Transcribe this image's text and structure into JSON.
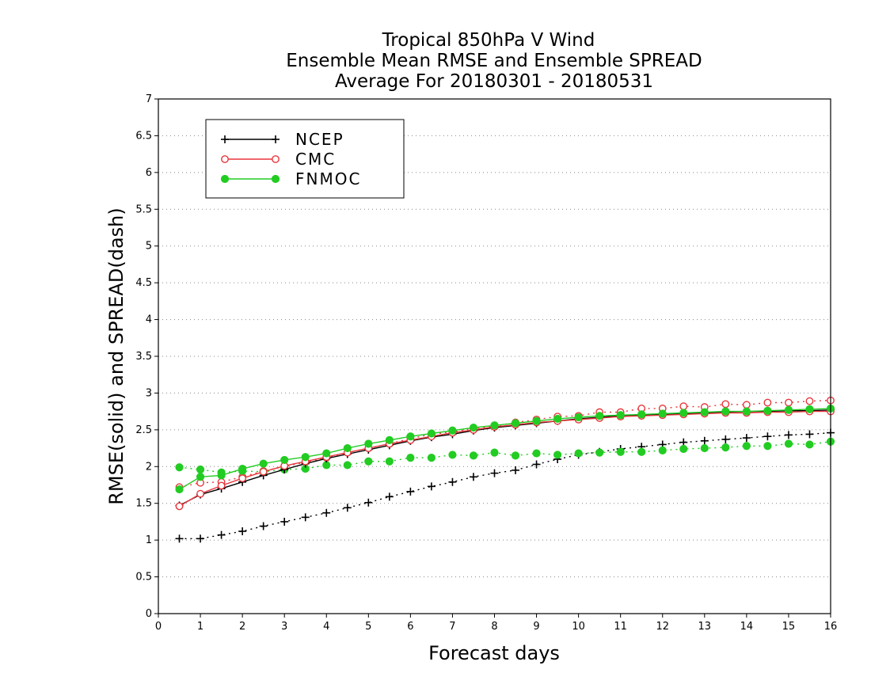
{
  "chart_data": {
    "type": "line",
    "title": "Tropical 850hPa V Wind",
    "subtitle": "Ensemble Mean RMSE and Ensemble SPREAD",
    "subtitle2": "Average For 20180301 - 20180531",
    "xlabel": "Forecast days",
    "ylabel": "RMSE(solid) and SPREAD(dash)",
    "xlim": [
      0,
      16
    ],
    "ylim": [
      0,
      7
    ],
    "xticks": [
      0,
      1,
      2,
      3,
      4,
      5,
      6,
      7,
      8,
      9,
      10,
      11,
      12,
      13,
      14,
      15,
      16
    ],
    "yticks": [
      0,
      0.5,
      1,
      1.5,
      2,
      2.5,
      3,
      3.5,
      4,
      4.5,
      5,
      5.5,
      6,
      6.5,
      7
    ],
    "grid": "horizontal dotted",
    "legend_position": "top-left",
    "x": [
      0.5,
      1,
      1.5,
      2,
      2.5,
      3,
      3.5,
      4,
      4.5,
      5,
      5.5,
      6,
      6.5,
      7,
      7.5,
      8,
      8.5,
      9,
      9.5,
      10,
      10.5,
      11,
      11.5,
      12,
      12.5,
      13,
      13.5,
      14,
      14.5,
      15,
      15.5,
      16
    ],
    "series": [
      {
        "name": "NCEP",
        "color": "#000000",
        "marker": "plus",
        "rmse": [
          1.47,
          1.62,
          1.7,
          1.79,
          1.88,
          1.96,
          2.04,
          2.11,
          2.17,
          2.23,
          2.29,
          2.35,
          2.4,
          2.44,
          2.49,
          2.53,
          2.56,
          2.59,
          2.62,
          2.65,
          2.67,
          2.69,
          2.7,
          2.71,
          2.72,
          2.73,
          2.74,
          2.75,
          2.75,
          2.76,
          2.76,
          2.77
        ],
        "spread": [
          1.02,
          1.02,
          1.07,
          1.12,
          1.19,
          1.25,
          1.31,
          1.37,
          1.44,
          1.51,
          1.59,
          1.66,
          1.73,
          1.79,
          1.86,
          1.91,
          1.95,
          2.03,
          2.1,
          2.16,
          2.2,
          2.24,
          2.27,
          2.3,
          2.33,
          2.35,
          2.37,
          2.39,
          2.41,
          2.43,
          2.44,
          2.46
        ]
      },
      {
        "name": "CMC",
        "color": "#e8363c",
        "marker": "open-circle",
        "rmse": [
          1.46,
          1.63,
          1.74,
          1.84,
          1.93,
          2.01,
          2.07,
          2.13,
          2.19,
          2.25,
          2.31,
          2.36,
          2.41,
          2.46,
          2.5,
          2.54,
          2.57,
          2.6,
          2.62,
          2.64,
          2.66,
          2.68,
          2.69,
          2.7,
          2.71,
          2.72,
          2.73,
          2.73,
          2.74,
          2.74,
          2.75,
          2.75
        ],
        "spread": [
          1.72,
          1.78,
          1.79,
          1.86,
          1.94,
          2.0,
          2.06,
          2.12,
          2.19,
          2.25,
          2.31,
          2.38,
          2.44,
          2.47,
          2.52,
          2.55,
          2.6,
          2.64,
          2.68,
          2.69,
          2.74,
          2.74,
          2.79,
          2.79,
          2.82,
          2.81,
          2.85,
          2.84,
          2.87,
          2.87,
          2.89,
          2.9
        ]
      },
      {
        "name": "FNMOC",
        "color": "#22cc22",
        "marker": "filled-circle",
        "rmse": [
          1.69,
          1.86,
          1.88,
          1.97,
          2.04,
          2.09,
          2.13,
          2.18,
          2.25,
          2.31,
          2.36,
          2.41,
          2.45,
          2.49,
          2.53,
          2.56,
          2.59,
          2.62,
          2.65,
          2.67,
          2.69,
          2.7,
          2.71,
          2.72,
          2.73,
          2.74,
          2.75,
          2.75,
          2.76,
          2.77,
          2.78,
          2.79
        ],
        "spread": [
          1.99,
          1.96,
          1.92,
          1.94,
          1.93,
          1.96,
          1.97,
          2.02,
          2.02,
          2.07,
          2.07,
          2.12,
          2.12,
          2.16,
          2.15,
          2.19,
          2.15,
          2.18,
          2.16,
          2.18,
          2.19,
          2.2,
          2.2,
          2.22,
          2.24,
          2.25,
          2.26,
          2.28,
          2.28,
          2.31,
          2.3,
          2.34
        ]
      }
    ]
  }
}
